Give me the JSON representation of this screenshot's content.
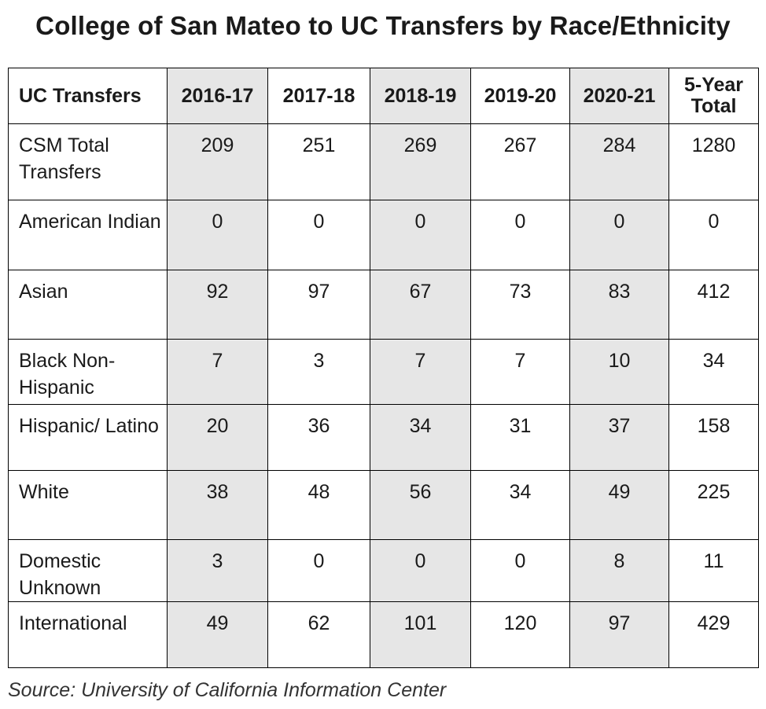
{
  "title": "College of San Mateo to UC Transfers by Race/Ethnicity",
  "table": {
    "row_header": "UC Transfers",
    "columns": [
      "2016-17",
      "2017-18",
      "2018-19",
      "2019-20",
      "2020-21",
      "5-Year Total"
    ],
    "rows": [
      {
        "label": "CSM Total Transfers",
        "values": [
          "209",
          "251",
          "269",
          "267",
          "284",
          "1280"
        ]
      },
      {
        "label": "American Indian",
        "values": [
          "0",
          "0",
          "0",
          "0",
          "0",
          "0"
        ]
      },
      {
        "label": "Asian",
        "values": [
          "92",
          "97",
          "67",
          "73",
          "83",
          "412"
        ]
      },
      {
        "label": "Black Non-Hispanic",
        "values": [
          "7",
          "3",
          "7",
          "7",
          "10",
          "34"
        ]
      },
      {
        "label": "Hispanic/ Latino",
        "values": [
          "20",
          "36",
          "34",
          "31",
          "37",
          "158"
        ]
      },
      {
        "label": "White",
        "values": [
          "38",
          "48",
          "56",
          "34",
          "49",
          "225"
        ]
      },
      {
        "label": "Domestic Unknown",
        "values": [
          "3",
          "0",
          "0",
          "0",
          "8",
          "11"
        ]
      },
      {
        "label": "International",
        "values": [
          "49",
          "62",
          "101",
          "120",
          "97",
          "429"
        ]
      }
    ]
  },
  "source": "Source: University of California Information Center",
  "colors": {
    "shaded_column": "#e6e6e6",
    "border": "#000000"
  }
}
